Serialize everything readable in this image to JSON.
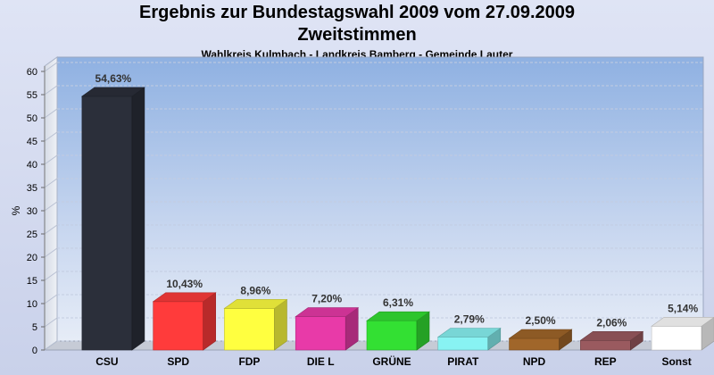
{
  "chart_data": {
    "type": "bar",
    "title": "Ergebnis zur Bundestagswahl 2009 vom 27.09.2009",
    "subtitle": "Zweitstimmen",
    "caption": "Wahlkreis Kulmbach - Landkreis Bamberg - Gemeinde Lauter",
    "ylabel": "%",
    "ylim": [
      0,
      60
    ],
    "yticks": [
      0,
      5,
      10,
      15,
      20,
      25,
      30,
      35,
      40,
      45,
      50,
      55,
      60
    ],
    "grid": true,
    "categories": [
      "CSU",
      "SPD",
      "FDP",
      "DIE L",
      "GRÜNE",
      "PIRAT",
      "NPD",
      "REP",
      "Sonst"
    ],
    "values": [
      54.63,
      10.43,
      8.96,
      7.2,
      6.31,
      2.79,
      2.5,
      2.06,
      5.14
    ],
    "data_labels": [
      "54,63%",
      "10,43%",
      "8,96%",
      "7,20%",
      "6,31%",
      "2,79%",
      "2,50%",
      "2,06%",
      "5,14%"
    ],
    "colors": [
      "#2b2f3a",
      "#ff3b3b",
      "#ffff40",
      "#e83aa8",
      "#33e033",
      "#88f3f3",
      "#a0662a",
      "#9a5a5f",
      "#ffffff"
    ]
  }
}
